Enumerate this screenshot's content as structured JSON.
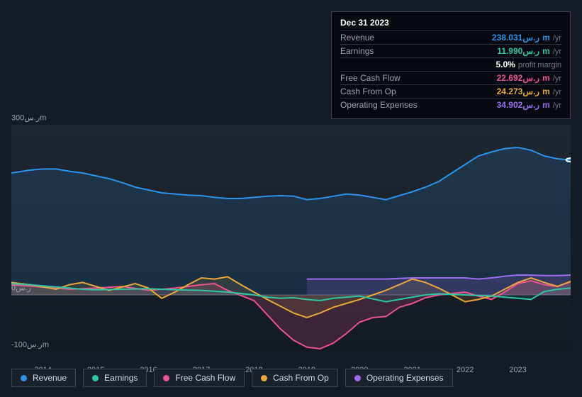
{
  "tooltip": {
    "date": "Dec 31 2023",
    "rows": [
      {
        "label": "Revenue",
        "value": "238.031",
        "currency": "ر.س",
        "mag": "m",
        "unit": "/yr",
        "color": "#2e93e8"
      },
      {
        "label": "Earnings",
        "value": "11.990",
        "currency": "ر.س",
        "mag": "m",
        "unit": "/yr",
        "color": "#2fc6a4"
      },
      {
        "label": "",
        "value": "5.0%",
        "currency": "",
        "mag": "",
        "unit": "profit margin",
        "color": "#ffffff"
      },
      {
        "label": "Free Cash Flow",
        "value": "22.692",
        "currency": "ر.س",
        "mag": "m",
        "unit": "/yr",
        "color": "#e8548d"
      },
      {
        "label": "Cash From Op",
        "value": "24.273",
        "currency": "ر.س",
        "mag": "m",
        "unit": "/yr",
        "color": "#e8a83b"
      },
      {
        "label": "Operating Expenses",
        "value": "34.902",
        "currency": "ر.س",
        "mag": "m",
        "unit": "/yr",
        "color": "#9b6cf0"
      }
    ]
  },
  "chart": {
    "type": "area-line",
    "background_top": "#1f2732",
    "background_bottom": "#141a22",
    "grid_color": "#2a323d",
    "axis_text_color": "#9aa4b2",
    "zero_line_color": "#4a5465",
    "font_family": "-apple-system, Arial, sans-serif",
    "label_fontsize": 11,
    "ylim": [
      -100,
      300
    ],
    "y_ticks": [
      {
        "v": 300,
        "label": "300ر.سm"
      },
      {
        "v": 0,
        "label": "0ر.س"
      },
      {
        "v": -100,
        "label": "-100ر.سm"
      }
    ],
    "x_years": [
      2014,
      2015,
      2016,
      2017,
      2018,
      2019,
      2020,
      2021,
      2022,
      2023
    ],
    "x_range": [
      2013.4,
      2024.0
    ],
    "legend": [
      {
        "name": "Revenue",
        "color": "#2e93e8"
      },
      {
        "name": "Earnings",
        "color": "#2fc6a4"
      },
      {
        "name": "Free Cash Flow",
        "color": "#e8548d"
      },
      {
        "name": "Cash From Op",
        "color": "#e8a83b"
      },
      {
        "name": "Operating Expenses",
        "color": "#9b6cf0"
      }
    ],
    "series": {
      "revenue": {
        "color": "#2e93e8",
        "fill_opacity": 0.15,
        "line_width": 2,
        "data": [
          [
            2013.4,
            215
          ],
          [
            2013.75,
            220
          ],
          [
            2014,
            222
          ],
          [
            2014.25,
            222
          ],
          [
            2014.5,
            218
          ],
          [
            2014.75,
            215
          ],
          [
            2015,
            210
          ],
          [
            2015.25,
            205
          ],
          [
            2015.5,
            198
          ],
          [
            2015.75,
            190
          ],
          [
            2016,
            185
          ],
          [
            2016.25,
            180
          ],
          [
            2016.5,
            178
          ],
          [
            2016.75,
            176
          ],
          [
            2017,
            175
          ],
          [
            2017.25,
            172
          ],
          [
            2017.5,
            170
          ],
          [
            2017.75,
            170
          ],
          [
            2018,
            172
          ],
          [
            2018.25,
            174
          ],
          [
            2018.5,
            175
          ],
          [
            2018.75,
            174
          ],
          [
            2019,
            168
          ],
          [
            2019.25,
            170
          ],
          [
            2019.5,
            174
          ],
          [
            2019.75,
            178
          ],
          [
            2020,
            176
          ],
          [
            2020.25,
            172
          ],
          [
            2020.5,
            168
          ],
          [
            2020.75,
            175
          ],
          [
            2021,
            182
          ],
          [
            2021.25,
            190
          ],
          [
            2021.5,
            200
          ],
          [
            2021.75,
            215
          ],
          [
            2022,
            230
          ],
          [
            2022.25,
            245
          ],
          [
            2022.5,
            252
          ],
          [
            2022.75,
            258
          ],
          [
            2023,
            260
          ],
          [
            2023.25,
            255
          ],
          [
            2023.5,
            245
          ],
          [
            2023.75,
            240
          ],
          [
            2024,
            238
          ]
        ]
      },
      "earnings": {
        "color": "#2fc6a4",
        "fill_opacity": 0.1,
        "line_width": 2,
        "data": [
          [
            2013.4,
            20
          ],
          [
            2013.75,
            18
          ],
          [
            2014,
            16
          ],
          [
            2014.25,
            14
          ],
          [
            2014.5,
            12
          ],
          [
            2014.75,
            10
          ],
          [
            2015,
            9
          ],
          [
            2015.5,
            10
          ],
          [
            2016,
            11
          ],
          [
            2016.5,
            9
          ],
          [
            2017,
            8
          ],
          [
            2017.5,
            5
          ],
          [
            2018,
            0
          ],
          [
            2018.25,
            -4
          ],
          [
            2018.5,
            -6
          ],
          [
            2018.75,
            -5
          ],
          [
            2019,
            -8
          ],
          [
            2019.25,
            -10
          ],
          [
            2019.5,
            -6
          ],
          [
            2019.75,
            -4
          ],
          [
            2020,
            -2
          ],
          [
            2020.5,
            -12
          ],
          [
            2020.75,
            -8
          ],
          [
            2021,
            -4
          ],
          [
            2021.25,
            0
          ],
          [
            2021.5,
            2
          ],
          [
            2022,
            0
          ],
          [
            2022.5,
            -2
          ],
          [
            2023,
            -6
          ],
          [
            2023.25,
            -8
          ],
          [
            2023.5,
            6
          ],
          [
            2023.75,
            10
          ],
          [
            2024,
            12
          ]
        ]
      },
      "free_cash_flow": {
        "color": "#e8548d",
        "fill_opacity": 0.18,
        "line_width": 2,
        "data": [
          [
            2013.4,
            18
          ],
          [
            2014,
            14
          ],
          [
            2014.5,
            10
          ],
          [
            2015,
            12
          ],
          [
            2015.5,
            15
          ],
          [
            2016,
            8
          ],
          [
            2016.5,
            12
          ],
          [
            2017,
            18
          ],
          [
            2017.25,
            20
          ],
          [
            2017.5,
            8
          ],
          [
            2018,
            -10
          ],
          [
            2018.25,
            -35
          ],
          [
            2018.5,
            -60
          ],
          [
            2018.75,
            -80
          ],
          [
            2019,
            -92
          ],
          [
            2019.25,
            -95
          ],
          [
            2019.5,
            -85
          ],
          [
            2019.75,
            -68
          ],
          [
            2020,
            -48
          ],
          [
            2020.25,
            -40
          ],
          [
            2020.5,
            -38
          ],
          [
            2020.75,
            -22
          ],
          [
            2021,
            -15
          ],
          [
            2021.25,
            -5
          ],
          [
            2021.5,
            0
          ],
          [
            2022,
            5
          ],
          [
            2022.25,
            -2
          ],
          [
            2022.5,
            -8
          ],
          [
            2022.75,
            5
          ],
          [
            2023,
            20
          ],
          [
            2023.25,
            25
          ],
          [
            2023.5,
            18
          ],
          [
            2023.75,
            15
          ],
          [
            2024,
            23
          ]
        ]
      },
      "cash_from_op": {
        "color": "#e8a83b",
        "fill_opacity": 0.12,
        "line_width": 2,
        "data": [
          [
            2013.4,
            22
          ],
          [
            2013.75,
            18
          ],
          [
            2014,
            14
          ],
          [
            2014.25,
            10
          ],
          [
            2014.5,
            18
          ],
          [
            2014.75,
            22
          ],
          [
            2015,
            15
          ],
          [
            2015.25,
            8
          ],
          [
            2015.5,
            14
          ],
          [
            2015.75,
            20
          ],
          [
            2016,
            12
          ],
          [
            2016.25,
            -6
          ],
          [
            2016.5,
            5
          ],
          [
            2016.75,
            18
          ],
          [
            2017,
            30
          ],
          [
            2017.25,
            28
          ],
          [
            2017.5,
            32
          ],
          [
            2017.75,
            18
          ],
          [
            2018,
            5
          ],
          [
            2018.25,
            -8
          ],
          [
            2018.5,
            -20
          ],
          [
            2018.75,
            -32
          ],
          [
            2019,
            -40
          ],
          [
            2019.25,
            -32
          ],
          [
            2019.5,
            -22
          ],
          [
            2019.75,
            -15
          ],
          [
            2020,
            -8
          ],
          [
            2020.25,
            0
          ],
          [
            2020.5,
            8
          ],
          [
            2020.75,
            18
          ],
          [
            2021,
            28
          ],
          [
            2021.25,
            22
          ],
          [
            2021.5,
            12
          ],
          [
            2021.75,
            0
          ],
          [
            2022,
            -12
          ],
          [
            2022.25,
            -8
          ],
          [
            2022.5,
            -2
          ],
          [
            2022.75,
            10
          ],
          [
            2023,
            22
          ],
          [
            2023.25,
            30
          ],
          [
            2023.5,
            22
          ],
          [
            2023.75,
            15
          ],
          [
            2024,
            24
          ]
        ]
      },
      "operating_expenses": {
        "color": "#9b6cf0",
        "fill_opacity": 0.18,
        "line_width": 2,
        "starts_at": 2019.0,
        "data": [
          [
            2019,
            28
          ],
          [
            2019.25,
            28
          ],
          [
            2019.5,
            28
          ],
          [
            2019.75,
            28
          ],
          [
            2020,
            28
          ],
          [
            2020.25,
            28
          ],
          [
            2020.5,
            28
          ],
          [
            2020.75,
            29
          ],
          [
            2021,
            30
          ],
          [
            2021.25,
            30
          ],
          [
            2021.5,
            30
          ],
          [
            2022,
            30
          ],
          [
            2022.25,
            28
          ],
          [
            2022.5,
            30
          ],
          [
            2022.75,
            33
          ],
          [
            2023,
            35
          ],
          [
            2023.25,
            35
          ],
          [
            2023.5,
            34
          ],
          [
            2023.75,
            34
          ],
          [
            2024,
            35
          ]
        ]
      }
    },
    "cursor_marker": {
      "x": 2024.0,
      "series": "revenue",
      "color": "#2e93e8"
    }
  }
}
